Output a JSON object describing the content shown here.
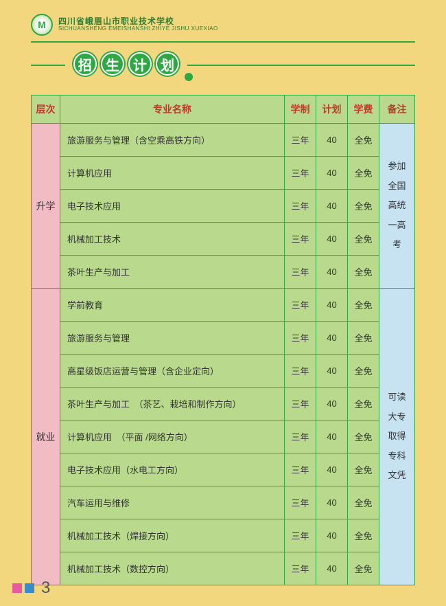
{
  "header": {
    "logo_text": "M",
    "school_cn": "四川省峨眉山市职业技术学校",
    "school_py": "SICHUANSHENG EMEISHANSHI ZHIYE JISHU XUEXIAO"
  },
  "title_chars": [
    "招",
    "生",
    "计",
    "划"
  ],
  "table": {
    "headers": {
      "level": "层次",
      "major": "专业名称",
      "duration": "学制",
      "plan": "计划",
      "fee": "学费",
      "note": "备注"
    },
    "groups": [
      {
        "level": "升学",
        "note": "参加\n全国\n高统\n一高\n考",
        "rows": [
          {
            "major": "旅游服务与管理（含空乘高铁方向）",
            "duration": "三年",
            "plan": "40",
            "fee": "全免"
          },
          {
            "major": "计算机应用",
            "duration": "三年",
            "plan": "40",
            "fee": "全免"
          },
          {
            "major": "电子技术应用",
            "duration": "三年",
            "plan": "40",
            "fee": "全免"
          },
          {
            "major": "机械加工技术",
            "duration": "三年",
            "plan": "40",
            "fee": "全免"
          },
          {
            "major": "茶叶生产与加工",
            "duration": "三年",
            "plan": "40",
            "fee": "全免"
          }
        ]
      },
      {
        "level": "就业",
        "note": "可读\n大专\n取得\n专科\n文凭",
        "rows": [
          {
            "major": "学前教育",
            "duration": "三年",
            "plan": "40",
            "fee": "全免"
          },
          {
            "major": "旅游服务与管理",
            "duration": "三年",
            "plan": "40",
            "fee": "全免"
          },
          {
            "major": "高星级饭店运营与管理（含企业定向）",
            "duration": "三年",
            "plan": "40",
            "fee": "全免"
          },
          {
            "major": "茶叶生产与加工　（茶艺、栽培和制作方向）",
            "duration": "三年",
            "plan": "40",
            "fee": "全免"
          },
          {
            "major": "计算机应用　（平面 /网络方向）",
            "duration": "三年",
            "plan": "40",
            "fee": "全免"
          },
          {
            "major": "电子技术应用（水电工方向）",
            "duration": "三年",
            "plan": "40",
            "fee": "全免"
          },
          {
            "major": "汽车运用与维修",
            "duration": "三年",
            "plan": "40",
            "fee": "全免"
          },
          {
            "major": "机械加工技术（焊接方向）",
            "duration": "三年",
            "plan": "40",
            "fee": "全免"
          },
          {
            "major": "机械加工技术（数控方向）",
            "duration": "三年",
            "plan": "40",
            "fee": "全免"
          }
        ]
      }
    ]
  },
  "page_number": "3",
  "colors": {
    "page_bg": "#f2d77e",
    "green": "#2fa843",
    "header_red": "#c0392b",
    "cell_bg": "#b9d98d",
    "level_bg": "#f2bcc5",
    "note_bg": "#c7e3f2"
  }
}
